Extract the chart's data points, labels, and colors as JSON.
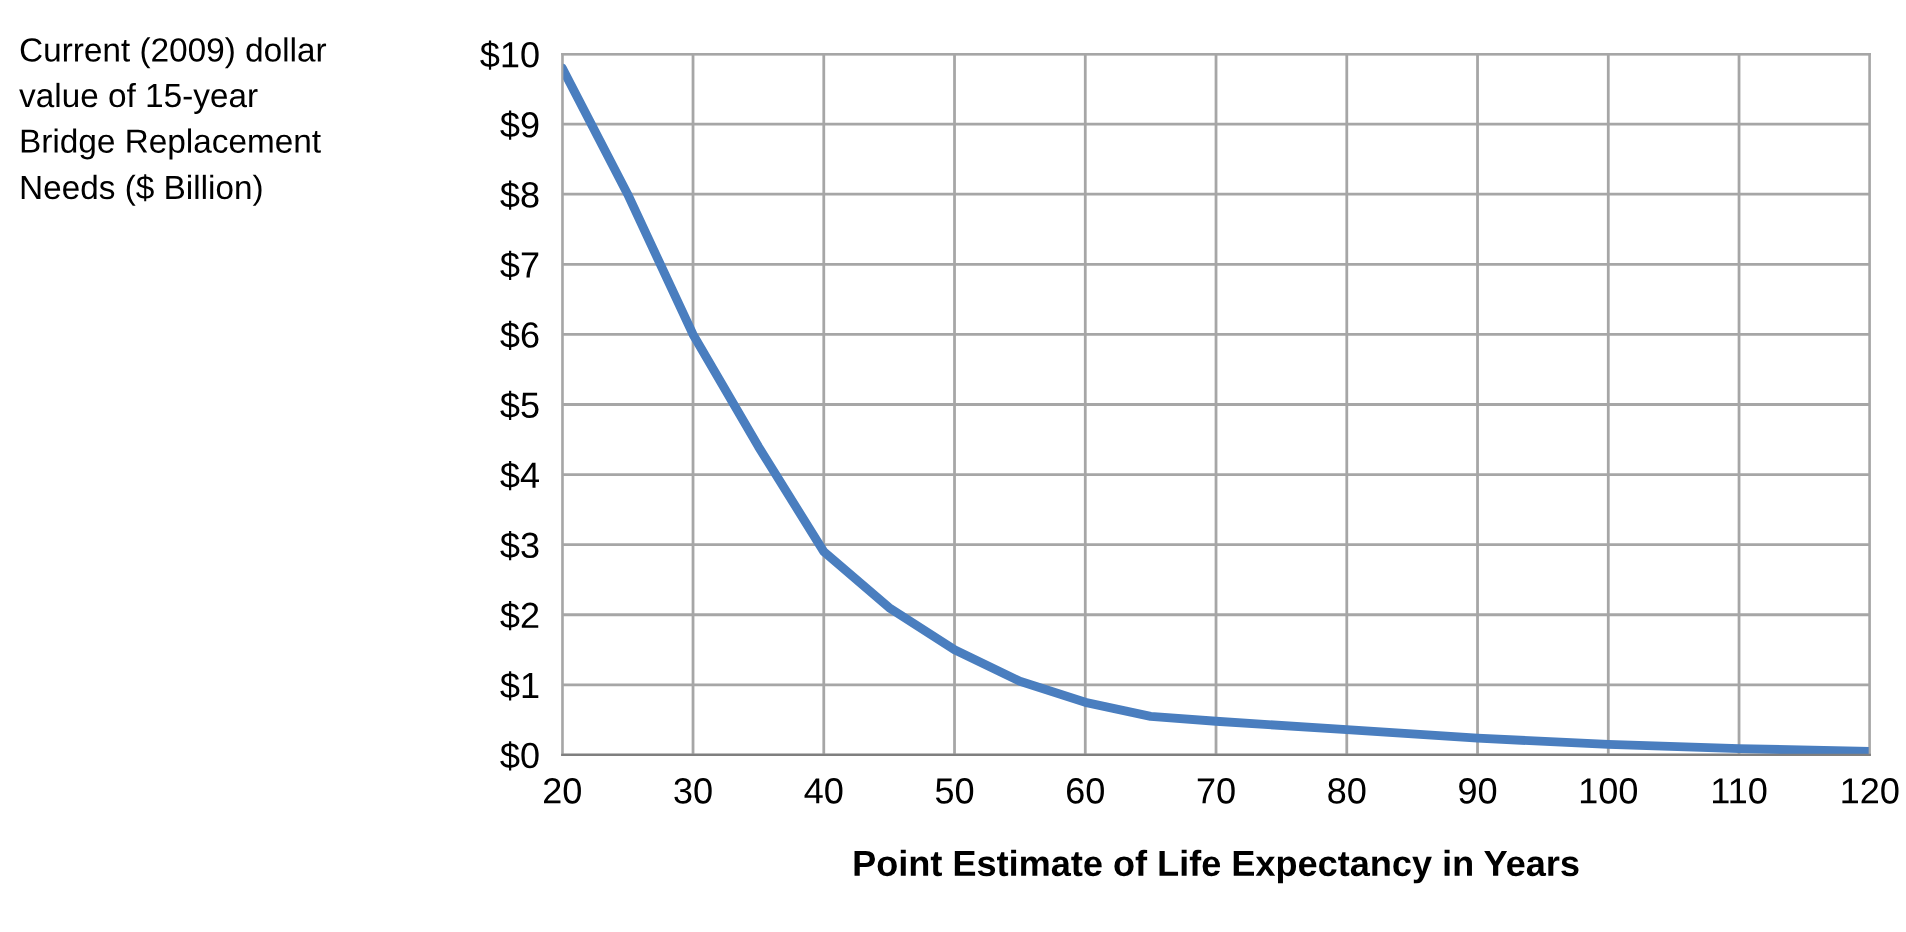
{
  "chart_data": {
    "type": "line",
    "ylabel": "Current (2009) dollar\nvalue of 15-year\nBridge Replacement\nNeeds ($ Billion)",
    "xlabel": "Point Estimate of Life Expectancy in Years",
    "x": [
      20,
      25,
      30,
      35,
      40,
      45,
      50,
      55,
      60,
      65,
      70,
      80,
      90,
      100,
      110,
      120
    ],
    "series": [
      {
        "color": "#4a7ebf",
        "values": [
          9.8,
          8.0,
          6.0,
          4.4,
          2.9,
          2.1,
          1.5,
          1.05,
          0.75,
          0.55,
          0.48,
          0.36,
          0.24,
          0.15,
          0.09,
          0.05
        ]
      }
    ],
    "xlim": [
      20,
      120
    ],
    "xticks": [
      20,
      30,
      40,
      50,
      60,
      70,
      80,
      90,
      100,
      110,
      120
    ],
    "ylim": [
      0,
      10
    ],
    "yticks": [
      {
        "value": 0,
        "label": "$0"
      },
      {
        "value": 1,
        "label": "$1"
      },
      {
        "value": 2,
        "label": "$2"
      },
      {
        "value": 3,
        "label": "$3"
      },
      {
        "value": 4,
        "label": "$4"
      },
      {
        "value": 5,
        "label": "$5"
      },
      {
        "value": 6,
        "label": "$6"
      },
      {
        "value": 7,
        "label": "$7"
      },
      {
        "value": 8,
        "label": "$8"
      },
      {
        "value": 9,
        "label": "$9"
      },
      {
        "value": 10,
        "label": "$10"
      }
    ],
    "grid": true,
    "marker": "none",
    "line_style": "solid",
    "legend": false
  }
}
